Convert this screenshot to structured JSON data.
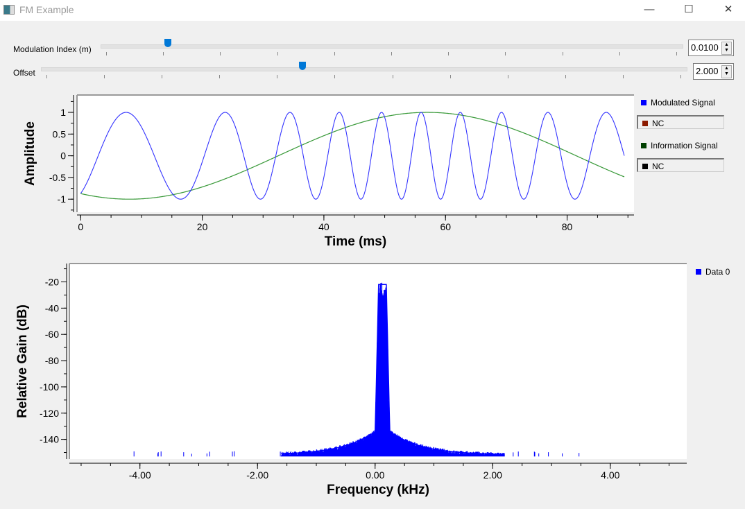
{
  "window": {
    "title": "FM Example",
    "minimize": "—",
    "maximize": "☐",
    "close": "✕"
  },
  "controls": {
    "modulation_index": {
      "label": "Modulation Index (m)",
      "value": "0.0100",
      "slider_fraction": 0.108
    },
    "offset": {
      "label": "Offset",
      "value": "2.000",
      "slider_fraction": 0.404
    }
  },
  "time_legend": [
    {
      "label": "Modulated Signal",
      "color": "#0000ff"
    },
    {
      "label": "NC",
      "color": "#8b1a00"
    },
    {
      "label": "Information Signal",
      "color": "#004000"
    },
    {
      "label": "NC",
      "color": "#000000"
    }
  ],
  "freq_legend": [
    {
      "label": "Data 0",
      "color": "#0000ff"
    }
  ],
  "chart_data": [
    {
      "type": "line",
      "xlabel": "Time (ms)",
      "ylabel": "Amplitude",
      "xlim": [
        -0.6,
        91
      ],
      "ylim": [
        -1.3,
        1.4
      ],
      "xticks": [
        "0",
        "20",
        "40",
        "60",
        "80"
      ],
      "xtick_values": [
        0,
        20,
        40,
        60,
        80
      ],
      "yticks": [
        "1",
        "0.5",
        "0",
        "-0.5",
        "-1"
      ],
      "ytick_values": [
        1,
        0.5,
        0,
        -0.5,
        -1
      ],
      "series": [
        {
          "name": "Modulated Signal",
          "color": "#3333ff",
          "peaks_ms": [
            8,
            24.5,
            35.5,
            43.5,
            50.5,
            57,
            63.5,
            70.5,
            77.5,
            85,
            89.5
          ],
          "amplitude": 1
        },
        {
          "name": "Information Signal",
          "color": "#3a9a3a",
          "min_at_ms": 8,
          "max_at_ms": 57,
          "amplitude": 1
        }
      ]
    },
    {
      "type": "line",
      "xlabel": "Frequency (kHz)",
      "ylabel": "Relative Gain (dB)",
      "xlim": [
        -5.2,
        5.3
      ],
      "ylim": [
        -155,
        -6
      ],
      "xticks": [
        "-4.00",
        "-2.00",
        "0.00",
        "2.00",
        "4.00"
      ],
      "xtick_values": [
        -4,
        -2,
        0,
        2,
        4
      ],
      "yticks": [
        "-20",
        "-40",
        "-60",
        "-80",
        "-100",
        "-120",
        "-140"
      ],
      "ytick_values": [
        -20,
        -40,
        -60,
        -80,
        -100,
        -120,
        -140
      ],
      "series": [
        {
          "name": "Data 0",
          "color": "#0000ff",
          "peak_db": -18,
          "band_khz": [
            0,
            0.25
          ],
          "skirt_db_at_band_edge": -134,
          "floor_db": -152
        }
      ]
    }
  ]
}
